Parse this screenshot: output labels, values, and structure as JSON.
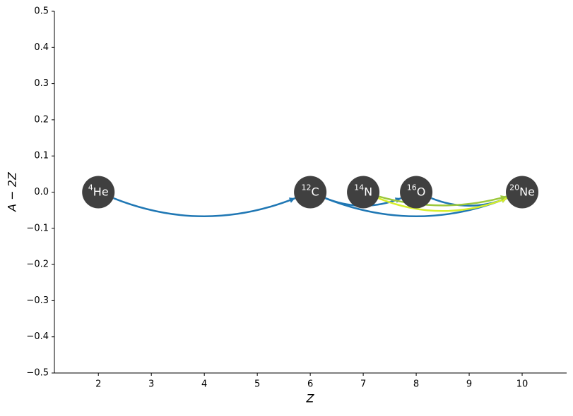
{
  "chart_data": {
    "type": "network",
    "xlabel": "Z",
    "ylabel": "A − 2Z",
    "xlim": [
      1.17,
      10.84
    ],
    "ylim": [
      -0.5,
      0.5
    ],
    "xticks": [
      2,
      3,
      4,
      5,
      6,
      7,
      8,
      9,
      10
    ],
    "yticks": [
      {
        "value": -0.5,
        "label": "−0.5"
      },
      {
        "value": -0.4,
        "label": "−0.4"
      },
      {
        "value": -0.3,
        "label": "−0.3"
      },
      {
        "value": -0.2,
        "label": "−0.2"
      },
      {
        "value": -0.1,
        "label": "−0.1"
      },
      {
        "value": 0,
        "label": "0.0"
      },
      0.1,
      0.2,
      0.3,
      0.4,
      0.5
    ],
    "node_color": "#404040",
    "nodes": [
      {
        "mass": "4",
        "symbol": "He",
        "x": 2,
        "y": 0
      },
      {
        "mass": "12",
        "symbol": "C",
        "x": 6,
        "y": 0
      },
      {
        "mass": "14",
        "symbol": "N",
        "x": 7,
        "y": 0
      },
      {
        "mass": "16",
        "symbol": "O",
        "x": 8,
        "y": 0
      },
      {
        "mass": "20",
        "symbol": "Ne",
        "x": 10,
        "y": 0
      }
    ],
    "links": [
      {
        "from": 0,
        "to": 1,
        "color": "#1f77b4"
      },
      {
        "from": 1,
        "to": 3,
        "color": "#1f77b4"
      },
      {
        "from": 1,
        "to": 4,
        "color": "#1f77b4"
      },
      {
        "from": 3,
        "to": 4,
        "color": "#1f77b4"
      },
      {
        "from": 2,
        "to": 4,
        "color": "#d7ee2c"
      },
      {
        "from": 2,
        "to": 4,
        "color": "#9cc83c"
      }
    ]
  }
}
